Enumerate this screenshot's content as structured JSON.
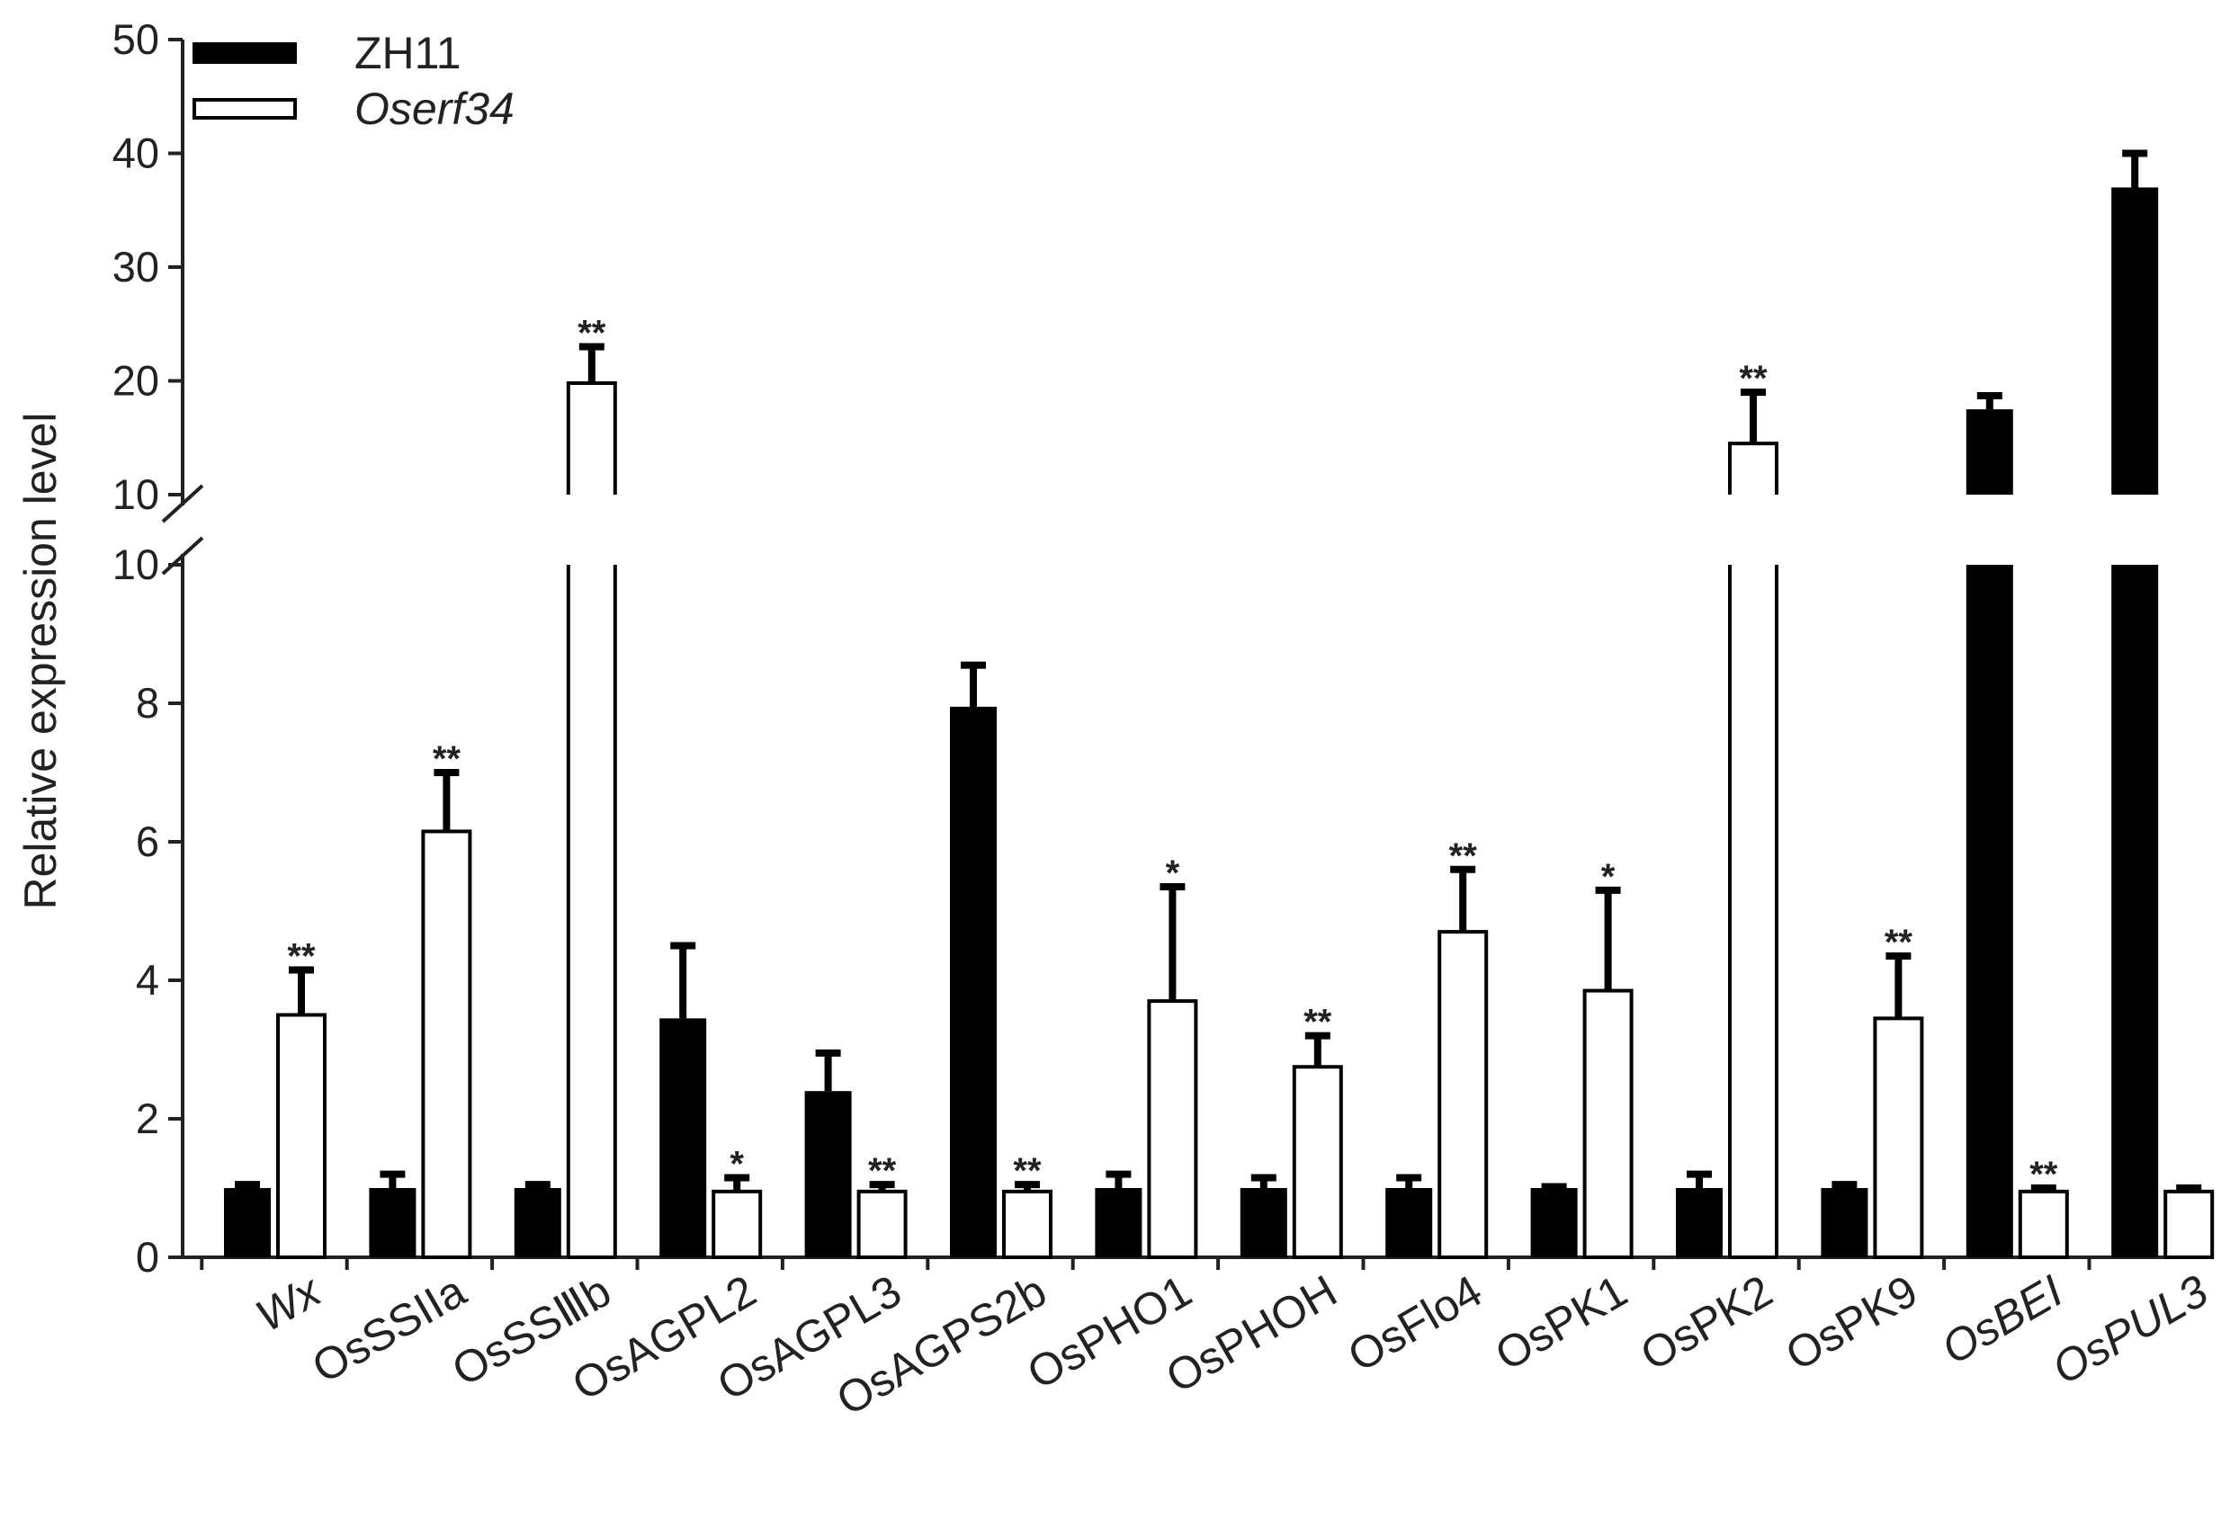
{
  "chart_data": {
    "type": "bar",
    "ylabel": "Relative expression level",
    "y_axis_break": {
      "lower_segment": {
        "range": [
          0,
          10
        ],
        "ticks": [
          0,
          2,
          4,
          6,
          8,
          10
        ]
      },
      "upper_segment": {
        "range": [
          10,
          50
        ],
        "ticks": [
          10,
          20,
          30,
          40,
          50
        ]
      }
    },
    "categories": [
      {
        "label": "Wx",
        "italic": true
      },
      {
        "label": "OsSSIIa",
        "italic": false
      },
      {
        "label": "OsSSⅢb",
        "italic": false
      },
      {
        "label": "OsAGPL2",
        "italic": false
      },
      {
        "label": "OsAGPL3",
        "italic": false
      },
      {
        "label": "OsAGPS2b",
        "italic": false
      },
      {
        "label": "OsPHO1",
        "italic": false
      },
      {
        "label": "OsPHOH",
        "italic": false
      },
      {
        "label": "OsFlo4",
        "italic": false
      },
      {
        "label": "OsPK1",
        "italic": false
      },
      {
        "label": "OsPK2",
        "italic": false
      },
      {
        "label": "OsPK9",
        "italic": false
      },
      {
        "label": "OsBEI",
        "italic": true
      },
      {
        "label": "OsPUL3",
        "italic": true
      }
    ],
    "series": [
      {
        "name": "ZH11",
        "italic": false,
        "color": "#000000",
        "fill": "solid",
        "values": [
          1.0,
          1.0,
          1.0,
          3.45,
          2.4,
          7.95,
          1.0,
          1.0,
          1.0,
          1.0,
          1.0,
          1.0,
          17.5,
          37.0
        ],
        "errors": [
          0.05,
          0.2,
          0.05,
          1.05,
          0.55,
          0.6,
          0.2,
          0.15,
          0.15,
          0.02,
          0.2,
          0.05,
          1.2,
          3.0
        ],
        "significance": [
          "",
          "",
          "",
          "",
          "",
          "",
          "",
          "",
          "",
          "",
          "",
          "",
          "",
          ""
        ]
      },
      {
        "name": "Oserf34",
        "italic": true,
        "color": "#ffffff",
        "fill": "hollow",
        "values": [
          3.5,
          6.15,
          19.8,
          0.95,
          0.95,
          0.95,
          3.7,
          2.75,
          4.7,
          3.85,
          14.5,
          3.45,
          0.95,
          0.95
        ],
        "errors": [
          0.65,
          0.85,
          3.2,
          0.2,
          0.1,
          0.1,
          1.65,
          0.45,
          0.9,
          1.45,
          4.5,
          0.9,
          0.05,
          0.05
        ],
        "significance": [
          "**",
          "**",
          "**",
          "*",
          "**",
          "**",
          "*",
          "**",
          "**",
          "*",
          "**",
          "**",
          "**",
          ""
        ]
      }
    ]
  }
}
